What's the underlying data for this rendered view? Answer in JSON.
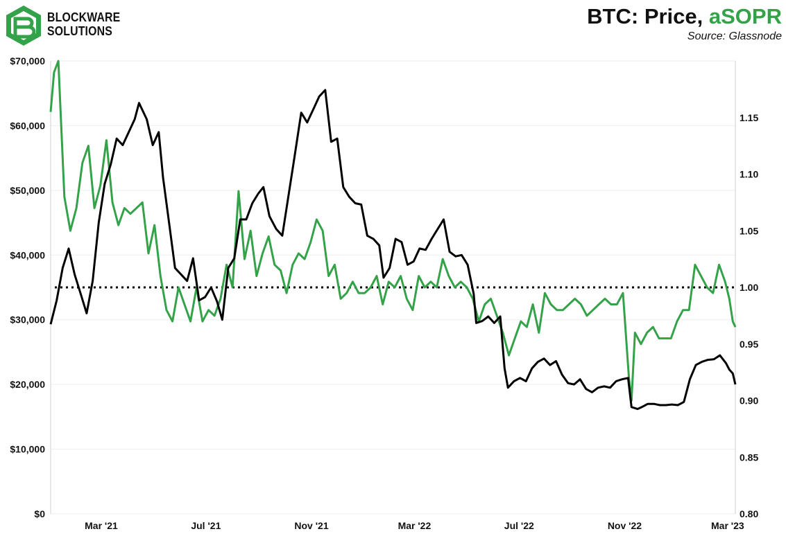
{
  "brand": {
    "line1": "BLOCKWARE",
    "line2": "SOLUTIONS",
    "logo_icon": "blockware-hexagon-logo-icon",
    "logo_color": "#33a248"
  },
  "header": {
    "title_main": "BTC: Price, ",
    "title_series": "aSOPR",
    "source": "Source: Glassnode"
  },
  "chart_data": {
    "type": "line",
    "title": "BTC: Price, aSOPR",
    "subtitle": "Source: Glassnode",
    "x_ticks": [
      "Mar '21",
      "Jul '21",
      "Nov '21",
      "Mar '22",
      "Jul '22",
      "Nov '22",
      "Mar '23"
    ],
    "x_tick_dates": [
      "2021-03-01",
      "2021-07-01",
      "2021-11-01",
      "2022-03-01",
      "2022-07-01",
      "2022-11-01",
      "2023-03-01"
    ],
    "x_range": [
      "2021-01-01",
      "2023-03-10"
    ],
    "y_left": {
      "ticks": [
        "$0",
        "$10,000",
        "$20,000",
        "$30,000",
        "$40,000",
        "$50,000",
        "$60,000",
        "$70,000"
      ],
      "range": [
        0,
        70000
      ]
    },
    "y_right": {
      "ticks": [
        "0.80",
        "0.85",
        "0.90",
        "0.95",
        "1.00",
        "1.05",
        "1.10",
        "1.15"
      ],
      "range": [
        0.8,
        1.2
      ]
    },
    "reference_line": {
      "axis": "right",
      "value": 1.0,
      "style": "dotted",
      "color": "#000000"
    },
    "grid": true,
    "series": [
      {
        "axis": "left",
        "color": "#000000",
        "x": [
          "2021-01-01",
          "2021-01-08",
          "2021-01-15",
          "2021-01-22",
          "2021-01-29",
          "2021-02-05",
          "2021-02-12",
          "2021-02-19",
          "2021-02-26",
          "2021-03-05",
          "2021-03-12",
          "2021-03-19",
          "2021-03-26",
          "2021-04-02",
          "2021-04-09",
          "2021-04-14",
          "2021-04-23",
          "2021-04-30",
          "2021-05-07",
          "2021-05-12",
          "2021-05-19",
          "2021-05-26",
          "2021-06-02",
          "2021-06-09",
          "2021-06-16",
          "2021-06-23",
          "2021-06-30",
          "2021-07-07",
          "2021-07-14",
          "2021-07-20",
          "2021-07-27",
          "2021-08-03",
          "2021-08-10",
          "2021-08-17",
          "2021-08-24",
          "2021-08-31",
          "2021-09-06",
          "2021-09-13",
          "2021-09-21",
          "2021-09-28",
          "2021-10-05",
          "2021-10-12",
          "2021-10-20",
          "2021-10-27",
          "2021-11-03",
          "2021-11-10",
          "2021-11-17",
          "2021-11-24",
          "2021-12-01",
          "2021-12-08",
          "2021-12-15",
          "2021-12-22",
          "2021-12-29",
          "2022-01-05",
          "2022-01-12",
          "2022-01-19",
          "2022-01-24",
          "2022-01-31",
          "2022-02-07",
          "2022-02-14",
          "2022-02-21",
          "2022-02-28",
          "2022-03-07",
          "2022-03-14",
          "2022-03-21",
          "2022-03-28",
          "2022-04-04",
          "2022-04-11",
          "2022-04-18",
          "2022-04-25",
          "2022-05-02",
          "2022-05-09",
          "2022-05-12",
          "2022-05-19",
          "2022-05-26",
          "2022-06-02",
          "2022-06-09",
          "2022-06-14",
          "2022-06-18",
          "2022-06-25",
          "2022-07-02",
          "2022-07-09",
          "2022-07-16",
          "2022-07-23",
          "2022-07-30",
          "2022-08-06",
          "2022-08-13",
          "2022-08-20",
          "2022-08-27",
          "2022-09-03",
          "2022-09-10",
          "2022-09-17",
          "2022-09-24",
          "2022-10-01",
          "2022-10-08",
          "2022-10-15",
          "2022-10-22",
          "2022-10-29",
          "2022-11-05",
          "2022-11-09",
          "2022-11-16",
          "2022-11-21",
          "2022-11-28",
          "2022-12-05",
          "2022-12-12",
          "2022-12-19",
          "2022-12-26",
          "2023-01-02",
          "2023-01-09",
          "2023-01-16",
          "2023-01-23",
          "2023-01-30",
          "2023-02-06",
          "2023-02-13",
          "2023-02-20",
          "2023-02-27",
          "2023-03-03",
          "2023-03-07",
          "2023-03-10"
        ],
        "values": [
          29300,
          33000,
          38000,
          41000,
          37000,
          34000,
          31000,
          36000,
          45000,
          51000,
          54000,
          58000,
          57000,
          59000,
          61000,
          63500,
          61000,
          57000,
          59000,
          52000,
          45000,
          38000,
          37000,
          36000,
          39500,
          33000,
          33500,
          35000,
          32800,
          30000,
          38000,
          39500,
          45500,
          45500,
          48000,
          49500,
          50500,
          46000,
          44000,
          43000,
          49000,
          55000,
          62000,
          60500,
          62500,
          64500,
          65500,
          57500,
          58000,
          50500,
          49000,
          48000,
          47800,
          43000,
          42500,
          41500,
          36500,
          38000,
          42500,
          42000,
          38500,
          39000,
          41000,
          40800,
          42500,
          44000,
          45500,
          40500,
          39800,
          40000,
          38500,
          34000,
          29500,
          29800,
          30500,
          29500,
          30500,
          22500,
          19500,
          20500,
          21000,
          20500,
          22500,
          23500,
          24000,
          23000,
          23600,
          21500,
          20200,
          20000,
          20800,
          19300,
          18800,
          19500,
          19700,
          19500,
          20500,
          20800,
          21000,
          16500,
          16200,
          16500,
          17000,
          17000,
          16800,
          16800,
          16900,
          16800,
          17300,
          20800,
          23000,
          23500,
          23800,
          23900,
          24500,
          23300,
          22300,
          21700,
          20000
        ]
      },
      {
        "axis": "right",
        "color": "#33a248",
        "x": [
          "2021-01-01",
          "2021-01-05",
          "2021-01-10",
          "2021-01-17",
          "2021-01-24",
          "2021-01-31",
          "2021-02-07",
          "2021-02-14",
          "2021-02-21",
          "2021-02-28",
          "2021-03-07",
          "2021-03-14",
          "2021-03-21",
          "2021-03-28",
          "2021-04-04",
          "2021-04-11",
          "2021-04-18",
          "2021-04-25",
          "2021-05-02",
          "2021-05-09",
          "2021-05-16",
          "2021-05-23",
          "2021-05-30",
          "2021-06-06",
          "2021-06-13",
          "2021-06-20",
          "2021-06-27",
          "2021-07-04",
          "2021-07-11",
          "2021-07-18",
          "2021-07-25",
          "2021-08-01",
          "2021-08-08",
          "2021-08-15",
          "2021-08-22",
          "2021-08-29",
          "2021-09-05",
          "2021-09-12",
          "2021-09-19",
          "2021-09-26",
          "2021-10-03",
          "2021-10-10",
          "2021-10-17",
          "2021-10-24",
          "2021-10-31",
          "2021-11-07",
          "2021-11-14",
          "2021-11-21",
          "2021-11-28",
          "2021-12-05",
          "2021-12-12",
          "2021-12-19",
          "2021-12-26",
          "2022-01-02",
          "2022-01-09",
          "2022-01-16",
          "2022-01-23",
          "2022-01-30",
          "2022-02-06",
          "2022-02-13",
          "2022-02-20",
          "2022-02-27",
          "2022-03-06",
          "2022-03-13",
          "2022-03-20",
          "2022-03-27",
          "2022-04-03",
          "2022-04-10",
          "2022-04-17",
          "2022-04-24",
          "2022-05-01",
          "2022-05-08",
          "2022-05-15",
          "2022-05-22",
          "2022-05-29",
          "2022-06-05",
          "2022-06-12",
          "2022-06-19",
          "2022-06-26",
          "2022-07-03",
          "2022-07-10",
          "2022-07-17",
          "2022-07-24",
          "2022-07-31",
          "2022-08-07",
          "2022-08-14",
          "2022-08-21",
          "2022-08-28",
          "2022-09-04",
          "2022-09-11",
          "2022-09-18",
          "2022-09-25",
          "2022-10-02",
          "2022-10-09",
          "2022-10-16",
          "2022-10-23",
          "2022-10-30",
          "2022-11-06",
          "2022-11-09",
          "2022-11-13",
          "2022-11-20",
          "2022-11-27",
          "2022-12-04",
          "2022-12-11",
          "2022-12-18",
          "2022-12-25",
          "2023-01-01",
          "2023-01-08",
          "2023-01-15",
          "2023-01-22",
          "2023-01-29",
          "2023-02-05",
          "2023-02-12",
          "2023-02-19",
          "2023-02-26",
          "2023-03-03",
          "2023-03-07",
          "2023-03-10"
        ],
        "values": [
          1.155,
          1.19,
          1.2,
          1.08,
          1.05,
          1.07,
          1.11,
          1.125,
          1.07,
          1.09,
          1.13,
          1.075,
          1.055,
          1.07,
          1.065,
          1.07,
          1.075,
          1.03,
          1.055,
          1.01,
          0.98,
          0.97,
          1.0,
          0.985,
          0.97,
          1.0,
          0.97,
          0.98,
          0.975,
          0.99,
          1.02,
          1.0,
          1.085,
          1.025,
          1.05,
          1.01,
          1.03,
          1.045,
          1.02,
          1.015,
          0.995,
          1.02,
          1.03,
          1.025,
          1.04,
          1.06,
          1.05,
          1.01,
          1.02,
          0.99,
          0.995,
          1.005,
          0.995,
          0.995,
          1.0,
          1.01,
          0.985,
          1.005,
          1.0,
          1.01,
          0.99,
          0.98,
          1.01,
          1.0,
          1.005,
          1.0,
          1.025,
          1.01,
          1.0,
          1.005,
          1.0,
          0.99,
          0.97,
          0.985,
          0.99,
          0.975,
          0.96,
          0.94,
          0.955,
          0.97,
          0.965,
          0.985,
          0.96,
          0.995,
          0.985,
          0.98,
          0.98,
          0.985,
          0.99,
          0.985,
          0.975,
          0.98,
          0.985,
          0.99,
          0.985,
          0.985,
          0.995,
          0.92,
          0.9,
          0.96,
          0.95,
          0.96,
          0.965,
          0.955,
          0.955,
          0.955,
          0.97,
          0.98,
          0.98,
          1.02,
          1.01,
          1.0,
          0.995,
          1.02,
          1.005,
          0.99,
          0.97,
          0.965
        ]
      }
    ]
  }
}
